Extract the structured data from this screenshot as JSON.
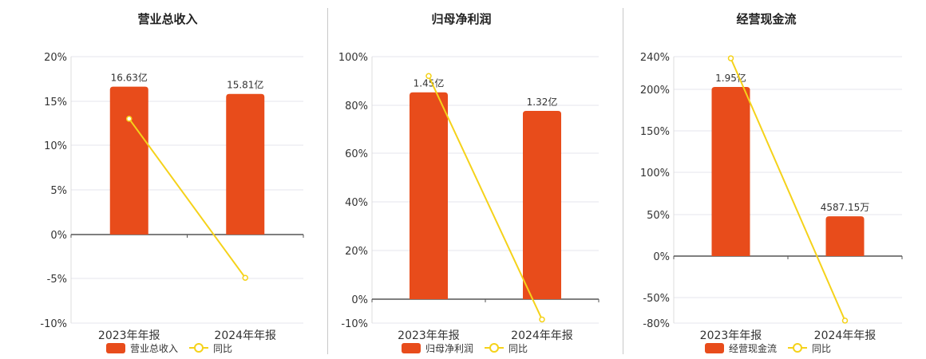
{
  "colors": {
    "bar": "#e84c1b",
    "line": "#f5d21a",
    "axis": "#555555",
    "grid": "#e4e4ec",
    "text": "#333333",
    "title": "#222222"
  },
  "chart_data": [
    {
      "type": "bar",
      "title": "营业总收入",
      "categories": [
        "2023年年报",
        "2024年年报"
      ],
      "series": [
        {
          "name": "营业总收入",
          "type": "bar",
          "values": [
            16.63,
            15.81
          ],
          "labels": [
            "16.63亿",
            "15.81亿"
          ]
        },
        {
          "name": "同比",
          "type": "line",
          "values": [
            13.0,
            -4.9
          ]
        }
      ],
      "yticks": [
        "20%",
        "15%",
        "10%",
        "5%",
        "0%",
        "-5%",
        "-10%"
      ],
      "ylim": [
        -10,
        20
      ],
      "bar_scale_max": 20,
      "legend": "bottom",
      "grid": true
    },
    {
      "type": "bar",
      "title": "归母净利润",
      "categories": [
        "2023年年报",
        "2024年年报"
      ],
      "series": [
        {
          "name": "归母净利润",
          "type": "bar",
          "values": [
            1.45,
            1.32
          ],
          "labels": [
            "1.45亿",
            "1.32亿"
          ]
        },
        {
          "name": "同比",
          "type": "line",
          "values": [
            92.0,
            -8.5
          ]
        }
      ],
      "yticks": [
        "100%",
        "80%",
        "60%",
        "40%",
        "20%",
        "0%",
        "-10%"
      ],
      "ylim": [
        -10,
        100
      ],
      "bar_scale_max": 1.7,
      "legend": "bottom",
      "grid": true
    },
    {
      "type": "bar",
      "title": "经营现金流",
      "categories": [
        "2023年年报",
        "2024年年报"
      ],
      "series": [
        {
          "name": "经营现金流",
          "type": "bar",
          "values": [
            1.95,
            0.4587
          ],
          "labels": [
            "1.95亿",
            "4587.15万"
          ]
        },
        {
          "name": "同比",
          "type": "line",
          "values": [
            238.0,
            -77.0
          ]
        }
      ],
      "yticks": [
        "240%",
        "200%",
        "150%",
        "100%",
        "50%",
        "0%",
        "-50%",
        "-80%"
      ],
      "ylim": [
        -80,
        240
      ],
      "bar_scale_max": 2.3,
      "legend": "bottom",
      "grid": true
    }
  ]
}
